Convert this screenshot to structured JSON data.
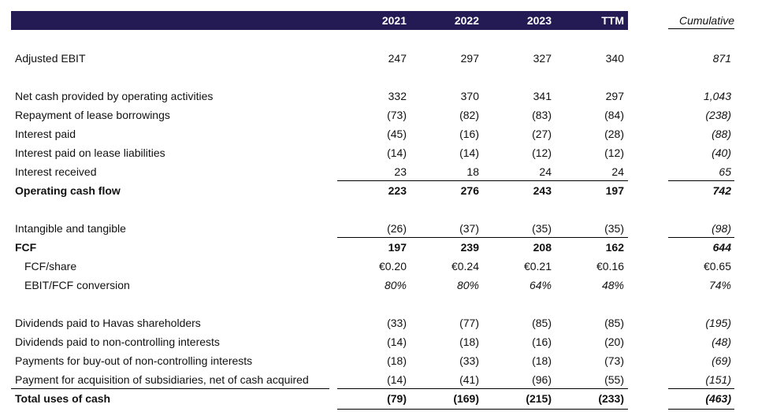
{
  "header": {
    "columns": [
      "2021",
      "2022",
      "2023",
      "TTM"
    ],
    "cumulative": "Cumulative"
  },
  "colors": {
    "header_bg": "#241b54",
    "header_text": "#ffffff"
  },
  "rows": [
    {
      "label": "Adjusted EBIT",
      "values": [
        "247",
        "297",
        "327",
        "340"
      ],
      "cumulative": "871"
    },
    {
      "label": "Net cash provided by operating activities",
      "values": [
        "332",
        "370",
        "341",
        "297"
      ],
      "cumulative": "1,043"
    },
    {
      "label": "Repayment of lease borrowings",
      "values": [
        "(73)",
        "(82)",
        "(83)",
        "(84)"
      ],
      "cumulative": "(238)"
    },
    {
      "label": "Interest paid",
      "values": [
        "(45)",
        "(16)",
        "(27)",
        "(28)"
      ],
      "cumulative": "(88)"
    },
    {
      "label": "Interest paid on lease liabilities",
      "values": [
        "(14)",
        "(14)",
        "(12)",
        "(12)"
      ],
      "cumulative": "(40)"
    },
    {
      "label": "Interest received",
      "values": [
        "23",
        "18",
        "24",
        "24"
      ],
      "cumulative": "65"
    },
    {
      "label": "Operating cash flow",
      "values": [
        "223",
        "276",
        "243",
        "197"
      ],
      "cumulative": "742"
    },
    {
      "label": "Intangible and tangible",
      "values": [
        "(26)",
        "(37)",
        "(35)",
        "(35)"
      ],
      "cumulative": "(98)"
    },
    {
      "label": "FCF",
      "values": [
        "197",
        "239",
        "208",
        "162"
      ],
      "cumulative": "644"
    },
    {
      "label": "FCF/share",
      "values": [
        "€0.20",
        "€0.24",
        "€0.21",
        "€0.16"
      ],
      "cumulative": "€0.65"
    },
    {
      "label": "EBIT/FCF conversion",
      "values": [
        "80%",
        "80%",
        "64%",
        "48%"
      ],
      "cumulative": "74%"
    },
    {
      "label": "Dividends paid to Havas shareholders",
      "values": [
        "(33)",
        "(77)",
        "(85)",
        "(85)"
      ],
      "cumulative": "(195)"
    },
    {
      "label": "Dividends paid to non-controlling interests",
      "values": [
        "(14)",
        "(18)",
        "(16)",
        "(20)"
      ],
      "cumulative": "(48)"
    },
    {
      "label": "Payments for buy-out of non-controlling interests",
      "values": [
        "(18)",
        "(33)",
        "(18)",
        "(73)"
      ],
      "cumulative": "(69)"
    },
    {
      "label": "Payment for acquisition of subsidiaries, net of cash acquired",
      "values": [
        "(14)",
        "(41)",
        "(96)",
        "(55)"
      ],
      "cumulative": "(151)"
    },
    {
      "label": "Total uses of cash",
      "values": [
        "(79)",
        "(169)",
        "(215)",
        "(233)"
      ],
      "cumulative": "(463)"
    }
  ]
}
